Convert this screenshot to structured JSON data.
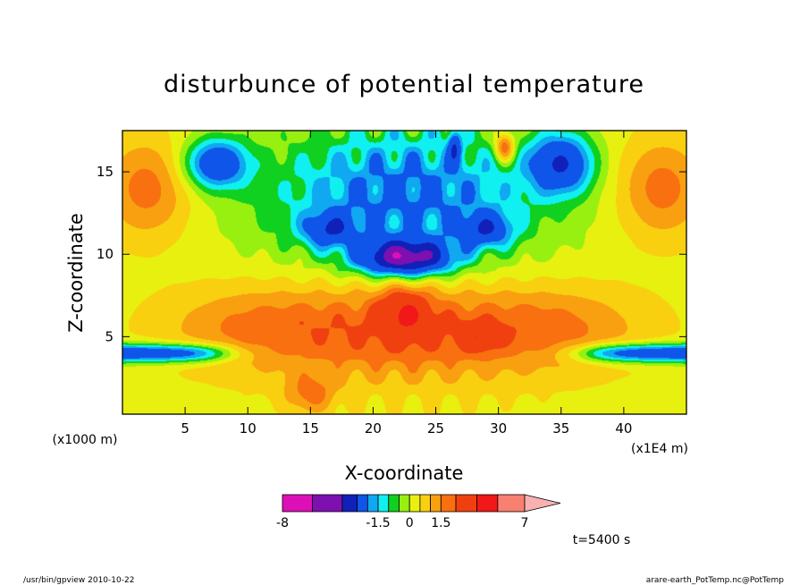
{
  "chart_data": {
    "type": "heatmap",
    "title": "disturbunce of potential temperature",
    "xlabel": "X-coordinate",
    "ylabel": "Z-coordinate",
    "x_unit": "(x1E4 m)",
    "y_unit": "(x1000 m)",
    "xlim": [
      0,
      45
    ],
    "ylim": [
      0.3,
      17.5
    ],
    "x_ticks": [
      5,
      10,
      15,
      20,
      25,
      30,
      35,
      40
    ],
    "y_ticks": [
      5,
      10,
      15
    ],
    "colorbar": {
      "levels": [
        -8,
        -6.5,
        -5,
        -3.5,
        -2,
        -1.5,
        -1,
        -0.5,
        0,
        0.5,
        1,
        1.5,
        2,
        3.5,
        5,
        7
      ],
      "colors": [
        "#dd10b8",
        "#7e10b0",
        "#1020b8",
        "#1055ea",
        "#10a8f0",
        "#10f0f0",
        "#10d020",
        "#98f010",
        "#e8f010",
        "#f8d010",
        "#f8a010",
        "#f87010",
        "#f04010",
        "#f01818",
        "#f88070",
        "#f8b0b0"
      ],
      "tick_labels": [
        "-8",
        "-1.5",
        "0",
        "1.5",
        "7"
      ],
      "extend": "max"
    },
    "series": [
      {
        "features": [
          {
            "kind": "background",
            "value": 0.3
          },
          {
            "kind": "blob",
            "x": 22.5,
            "z": 5.5,
            "sx": 12,
            "sz": 3.2,
            "value": 1.8
          },
          {
            "kind": "blob",
            "x": 2,
            "z": 14,
            "sx": 3.5,
            "sz": 3,
            "value": 1.5
          },
          {
            "kind": "blob",
            "x": 43,
            "z": 14,
            "sx": 3.5,
            "sz": 3,
            "value": 1.5
          },
          {
            "kind": "blob",
            "x": 10,
            "z": 5.5,
            "sx": 7,
            "sz": 2.4,
            "value": 0.9
          },
          {
            "kind": "blob",
            "x": 35,
            "z": 5.5,
            "sx": 7,
            "sz": 2.4,
            "value": 0.9
          },
          {
            "kind": "blob",
            "x": 22.5,
            "z": 13.5,
            "sx": 11,
            "sz": 4.5,
            "value": -2.6
          },
          {
            "kind": "blob",
            "x": 7.5,
            "z": 15.5,
            "sx": 2.5,
            "sz": 1.5,
            "value": -3.2
          },
          {
            "kind": "blob",
            "x": 35,
            "z": 15.5,
            "sx": 2.5,
            "sz": 1.8,
            "value": -3.4
          },
          {
            "kind": "blob",
            "x": 22.5,
            "z": 9.8,
            "sx": 3.5,
            "sz": 1,
            "value": -5.5
          },
          {
            "kind": "blob",
            "x": 16.5,
            "z": 11.5,
            "sx": 2,
            "sz": 1,
            "value": -2.5
          },
          {
            "kind": "blob",
            "x": 29,
            "z": 11.5,
            "sx": 2,
            "sz": 1,
            "value": -2.5
          },
          {
            "kind": "blob",
            "x": 22.5,
            "z": 6.5,
            "sx": 2,
            "sz": 1.5,
            "value": 2
          },
          {
            "kind": "blob",
            "x": 28.5,
            "z": 5,
            "sx": 1.5,
            "sz": 0.8,
            "value": 1.5
          },
          {
            "kind": "blob",
            "x": 30.5,
            "z": 16.5,
            "sx": 0.8,
            "sz": 0.9,
            "value": 2.5
          },
          {
            "kind": "blob",
            "x": 26.5,
            "z": 16.5,
            "sx": 0.5,
            "sz": 1,
            "value": -2.5
          },
          {
            "kind": "blob",
            "x": 15,
            "z": 1.5,
            "sx": 2,
            "sz": 1.2,
            "value": 1.2
          },
          {
            "kind": "band",
            "side": "left",
            "z": 4,
            "value": -3.4
          },
          {
            "kind": "band",
            "side": "right",
            "z": 4,
            "value": -3.4
          }
        ]
      }
    ]
  },
  "footer": {
    "left": "/usr/bin/gpview   2010-10-22",
    "right": "arare-earth_PotTemp.nc@PotTemp",
    "time": "t=5400 s"
  }
}
